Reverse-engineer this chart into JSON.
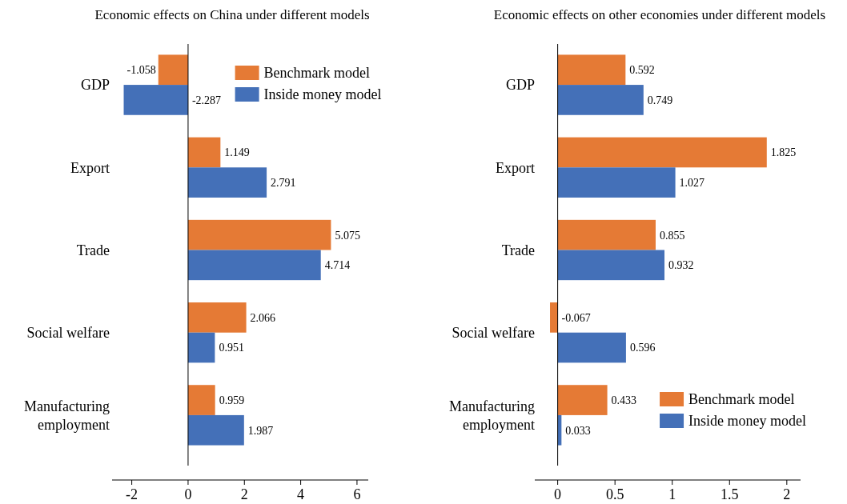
{
  "chart_data": [
    {
      "type": "bar",
      "orientation": "horizontal",
      "title": "Economic effects on China under different models",
      "categories": [
        "GDP",
        "Export",
        "Trade",
        "Social welfare",
        "Manufacturing employment"
      ],
      "series": [
        {
          "name": "Benchmark model",
          "color": "#e57a35",
          "values": [
            -1.058,
            1.149,
            5.075,
            2.066,
            0.959
          ]
        },
        {
          "name": "Inside money model",
          "color": "#4470b8",
          "values": [
            -2.287,
            2.791,
            4.714,
            0.951,
            1.987
          ]
        }
      ],
      "xlim": [
        -2.7,
        6.4
      ],
      "xticks": [
        -2,
        0,
        2,
        4,
        6
      ],
      "ref_lines": [
        {
          "axis": "x",
          "value": 0,
          "color": "#000000"
        }
      ],
      "data_labels": true,
      "legend": "top right",
      "grid": false
    },
    {
      "type": "bar",
      "orientation": "horizontal",
      "title": "Economic effects on other economies under different models",
      "categories": [
        "GDP",
        "Export",
        "Trade",
        "Social welfare",
        "Manufacturing employment"
      ],
      "series": [
        {
          "name": "Benchmark model",
          "color": "#e57a35",
          "values": [
            0.592,
            1.825,
            0.855,
            -0.067,
            0.433
          ]
        },
        {
          "name": "Inside money model",
          "color": "#4470b8",
          "values": [
            0.749,
            1.027,
            0.932,
            0.596,
            0.033
          ]
        }
      ],
      "xlim": [
        -0.2,
        2.12
      ],
      "xticks": [
        0,
        0.5,
        1,
        1.5,
        2
      ],
      "data_labels": true,
      "legend": "bottom right",
      "grid": false
    }
  ]
}
